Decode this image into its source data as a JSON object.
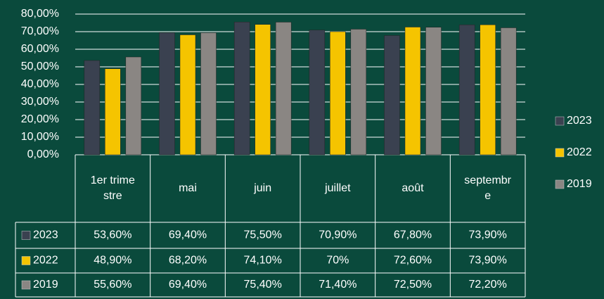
{
  "chart_data": {
    "type": "bar",
    "categories": [
      "1er trimestre",
      "mai",
      "juin",
      "juillet",
      "août",
      "septembre"
    ],
    "series": [
      {
        "name": "2023",
        "color": "#3a4150",
        "values": [
          53.6,
          69.4,
          75.5,
          70.9,
          67.8,
          73.9
        ],
        "value_labels": [
          "53,60%",
          "69,40%",
          "75,50%",
          "70,90%",
          "67,80%",
          "73,90%"
        ]
      },
      {
        "name": "2022",
        "color": "#f5c400",
        "values": [
          48.9,
          68.2,
          74.1,
          70,
          72.6,
          73.9
        ],
        "value_labels": [
          "48,90%",
          "68,20%",
          "74,10%",
          "70%",
          "72,60%",
          "73,90%"
        ]
      },
      {
        "name": "2019",
        "color": "#8a8683",
        "values": [
          55.6,
          69.4,
          75.4,
          71.4,
          72.5,
          72.2
        ],
        "value_labels": [
          "55,60%",
          "69,40%",
          "75,40%",
          "71,40%",
          "72,50%",
          "72,20%"
        ]
      }
    ],
    "ylim": [
      0,
      80
    ],
    "yticks": [
      {
        "value": 0,
        "label": "0,00%"
      },
      {
        "value": 10,
        "label": "10,00%"
      },
      {
        "value": 20,
        "label": "20,00%"
      },
      {
        "value": 30,
        "label": "30,00%"
      },
      {
        "value": 40,
        "label": "40,00%"
      },
      {
        "value": 50,
        "label": "50,00%"
      },
      {
        "value": 60,
        "label": "60,00%"
      },
      {
        "value": 70,
        "label": "70,00%"
      },
      {
        "value": 80,
        "label": "80,00%"
      }
    ],
    "grid": true,
    "legend": "right"
  }
}
